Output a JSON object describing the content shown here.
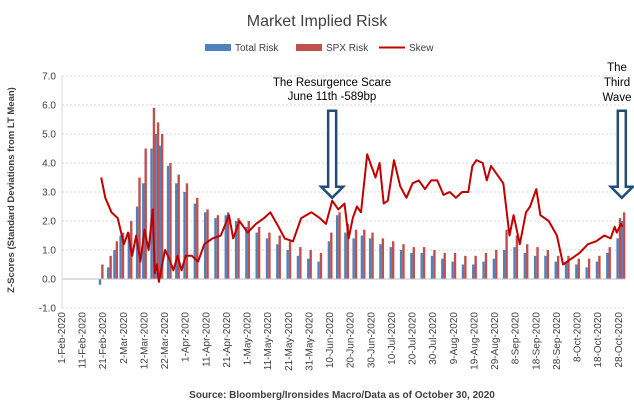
{
  "chart_data": {
    "type": "bar",
    "title": "Market Implied Risk",
    "ylabel": "Z-Scores (Standard Deviations from LT Mean)",
    "xlabel": "",
    "ylim": [
      -1.0,
      7.0
    ],
    "yticks": [
      "-1.0",
      "0.0",
      "1.0",
      "2.0",
      "3.0",
      "4.0",
      "5.0",
      "6.0",
      "7.0"
    ],
    "categories": [
      "1-Feb-2020",
      "11-Feb-2020",
      "21-Feb-2020",
      "2-Mar-2020",
      "12-Mar-2020",
      "22-Mar-2020",
      "1-Apr-2020",
      "11-Apr-2020",
      "21-Apr-2020",
      "1-May-2020",
      "11-May-2020",
      "21-May-2020",
      "31-May-2020",
      "10-Jun-2020",
      "20-Jun-2020",
      "30-Jun-2020",
      "10-Jul-2020",
      "20-Jul-2020",
      "30-Jul-2020",
      "9-Aug-2020",
      "19-Aug-2020",
      "29-Aug-2020",
      "8-Sep-2020",
      "18-Sep-2020",
      "28-Sep-2020",
      "8-Oct-2020",
      "18-Oct-2020",
      "28-Oct-2020"
    ],
    "legend": [
      "Total Risk",
      "SPX Risk",
      "Skew"
    ],
    "colors": {
      "total": "#4f81bd",
      "spx": "#c0504d",
      "skew": "#c00000",
      "arrow": "#1f4e79"
    },
    "source": "Source: Bloomberg/Ironsides Macro/Data as of October 30, 2020",
    "annotations": [
      {
        "lines": [
          "The Resurgence Scare",
          "June 11th -589bp"
        ],
        "date": "11-Jun-2020",
        "arrow_top": 5.8,
        "arrow_bottom": 2.8
      },
      {
        "lines": [
          "The",
          "Third",
          "Wave"
        ],
        "date": "28-Oct-2020",
        "arrow_top": 5.8,
        "arrow_bottom": 2.8
      }
    ],
    "series": [
      {
        "name": "Total Risk",
        "points": [
          [
            "20-Feb-2020",
            -0.2
          ],
          [
            "24-Feb-2020",
            0.4
          ],
          [
            "27-Feb-2020",
            1.0
          ],
          [
            "1-Mar-2020",
            1.5
          ],
          [
            "5-Mar-2020",
            1.6
          ],
          [
            "9-Mar-2020",
            2.5
          ],
          [
            "12-Mar-2020",
            3.3
          ],
          [
            "16-Mar-2020",
            4.5
          ],
          [
            "18-Mar-2020",
            5.0
          ],
          [
            "20-Mar-2020",
            4.6
          ],
          [
            "24-Mar-2020",
            3.9
          ],
          [
            "28-Mar-2020",
            3.3
          ],
          [
            "1-Apr-2020",
            3.0
          ],
          [
            "6-Apr-2020",
            2.6
          ],
          [
            "11-Apr-2020",
            2.3
          ],
          [
            "16-Apr-2020",
            2.1
          ],
          [
            "21-Apr-2020",
            2.2
          ],
          [
            "26-Apr-2020",
            2.0
          ],
          [
            "1-May-2020",
            1.8
          ],
          [
            "6-May-2020",
            1.6
          ],
          [
            "11-May-2020",
            1.4
          ],
          [
            "16-May-2020",
            1.2
          ],
          [
            "21-May-2020",
            1.0
          ],
          [
            "26-May-2020",
            0.8
          ],
          [
            "31-May-2020",
            0.7
          ],
          [
            "5-Jun-2020",
            0.6
          ],
          [
            "10-Jun-2020",
            1.3
          ],
          [
            "14-Jun-2020",
            2.2
          ],
          [
            "18-Jun-2020",
            1.6
          ],
          [
            "22-Jun-2020",
            1.4
          ],
          [
            "26-Jun-2020",
            1.5
          ],
          [
            "30-Jun-2020",
            1.4
          ],
          [
            "5-Jul-2020",
            1.2
          ],
          [
            "10-Jul-2020",
            1.1
          ],
          [
            "15-Jul-2020",
            1.0
          ],
          [
            "20-Jul-2020",
            0.9
          ],
          [
            "25-Jul-2020",
            0.9
          ],
          [
            "30-Jul-2020",
            0.8
          ],
          [
            "4-Aug-2020",
            0.7
          ],
          [
            "9-Aug-2020",
            0.6
          ],
          [
            "14-Aug-2020",
            0.5
          ],
          [
            "19-Aug-2020",
            0.5
          ],
          [
            "24-Aug-2020",
            0.6
          ],
          [
            "29-Aug-2020",
            0.7
          ],
          [
            "3-Sep-2020",
            1.0
          ],
          [
            "8-Sep-2020",
            1.1
          ],
          [
            "13-Sep-2020",
            0.9
          ],
          [
            "18-Sep-2020",
            0.8
          ],
          [
            "23-Sep-2020",
            0.8
          ],
          [
            "28-Sep-2020",
            0.6
          ],
          [
            "3-Oct-2020",
            0.6
          ],
          [
            "8-Oct-2020",
            0.5
          ],
          [
            "13-Oct-2020",
            0.4
          ],
          [
            "18-Oct-2020",
            0.6
          ],
          [
            "23-Oct-2020",
            0.9
          ],
          [
            "28-Oct-2020",
            1.4
          ],
          [
            "30-Oct-2020",
            2.0
          ]
        ]
      },
      {
        "name": "SPX Risk",
        "points": [
          [
            "20-Feb-2020",
            0.5
          ],
          [
            "24-Feb-2020",
            0.8
          ],
          [
            "27-Feb-2020",
            1.3
          ],
          [
            "1-Mar-2020",
            1.6
          ],
          [
            "5-Mar-2020",
            2.0
          ],
          [
            "9-Mar-2020",
            3.5
          ],
          [
            "12-Mar-2020",
            4.5
          ],
          [
            "16-Mar-2020",
            5.9
          ],
          [
            "18-Mar-2020",
            5.4
          ],
          [
            "20-Mar-2020",
            5.0
          ],
          [
            "24-Mar-2020",
            4.0
          ],
          [
            "28-Mar-2020",
            3.6
          ],
          [
            "1-Apr-2020",
            3.3
          ],
          [
            "6-Apr-2020",
            2.8
          ],
          [
            "11-Apr-2020",
            2.4
          ],
          [
            "16-Apr-2020",
            2.2
          ],
          [
            "21-Apr-2020",
            2.3
          ],
          [
            "26-Apr-2020",
            2.1
          ],
          [
            "1-May-2020",
            2.0
          ],
          [
            "6-May-2020",
            1.8
          ],
          [
            "11-May-2020",
            1.6
          ],
          [
            "16-May-2020",
            1.5
          ],
          [
            "21-May-2020",
            1.3
          ],
          [
            "26-May-2020",
            1.1
          ],
          [
            "31-May-2020",
            1.0
          ],
          [
            "5-Jun-2020",
            0.9
          ],
          [
            "10-Jun-2020",
            1.6
          ],
          [
            "14-Jun-2020",
            2.3
          ],
          [
            "18-Jun-2020",
            1.9
          ],
          [
            "22-Jun-2020",
            1.7
          ],
          [
            "26-Jun-2020",
            1.7
          ],
          [
            "30-Jun-2020",
            1.6
          ],
          [
            "5-Jul-2020",
            1.4
          ],
          [
            "10-Jul-2020",
            1.3
          ],
          [
            "15-Jul-2020",
            1.2
          ],
          [
            "20-Jul-2020",
            1.1
          ],
          [
            "25-Jul-2020",
            1.1
          ],
          [
            "30-Jul-2020",
            1.0
          ],
          [
            "4-Aug-2020",
            0.9
          ],
          [
            "9-Aug-2020",
            0.9
          ],
          [
            "14-Aug-2020",
            0.8
          ],
          [
            "19-Aug-2020",
            0.8
          ],
          [
            "24-Aug-2020",
            0.9
          ],
          [
            "29-Aug-2020",
            1.0
          ],
          [
            "3-Sep-2020",
            1.7
          ],
          [
            "8-Sep-2020",
            1.5
          ],
          [
            "13-Sep-2020",
            1.2
          ],
          [
            "18-Sep-2020",
            1.1
          ],
          [
            "23-Sep-2020",
            1.0
          ],
          [
            "28-Sep-2020",
            0.8
          ],
          [
            "3-Oct-2020",
            0.8
          ],
          [
            "8-Oct-2020",
            0.7
          ],
          [
            "13-Oct-2020",
            0.7
          ],
          [
            "18-Oct-2020",
            0.8
          ],
          [
            "23-Oct-2020",
            1.1
          ],
          [
            "28-Oct-2020",
            2.1
          ],
          [
            "30-Oct-2020",
            2.3
          ]
        ]
      },
      {
        "name": "Skew",
        "points": [
          [
            "20-Feb-2020",
            3.5
          ],
          [
            "22-Feb-2020",
            2.8
          ],
          [
            "25-Feb-2020",
            2.3
          ],
          [
            "28-Feb-2020",
            2.1
          ],
          [
            "2-Mar-2020",
            1.2
          ],
          [
            "4-Mar-2020",
            1.6
          ],
          [
            "6-Mar-2020",
            0.8
          ],
          [
            "8-Mar-2020",
            1.5
          ],
          [
            "10-Mar-2020",
            0.6
          ],
          [
            "12-Mar-2020",
            1.7
          ],
          [
            "14-Mar-2020",
            1.0
          ],
          [
            "16-Mar-2020",
            2.4
          ],
          [
            "17-Mar-2020",
            0.2
          ],
          [
            "18-Mar-2020",
            0.5
          ],
          [
            "19-Mar-2020",
            -0.1
          ],
          [
            "20-Mar-2020",
            0.3
          ],
          [
            "22-Mar-2020",
            1.0
          ],
          [
            "24-Mar-2020",
            0.7
          ],
          [
            "26-Mar-2020",
            0.3
          ],
          [
            "28-Mar-2020",
            0.8
          ],
          [
            "30-Mar-2020",
            0.3
          ],
          [
            "1-Apr-2020",
            0.8
          ],
          [
            "4-Apr-2020",
            0.8
          ],
          [
            "7-Apr-2020",
            0.6
          ],
          [
            "10-Apr-2020",
            1.2
          ],
          [
            "14-Apr-2020",
            1.4
          ],
          [
            "18-Apr-2020",
            1.5
          ],
          [
            "22-Apr-2020",
            2.2
          ],
          [
            "24-Apr-2020",
            1.4
          ],
          [
            "27-Apr-2020",
            2.0
          ],
          [
            "1-May-2020",
            1.6
          ],
          [
            "5-May-2020",
            1.9
          ],
          [
            "9-May-2020",
            2.1
          ],
          [
            "12-May-2020",
            2.3
          ],
          [
            "16-May-2020",
            1.8
          ],
          [
            "19-May-2020",
            1.4
          ],
          [
            "23-May-2020",
            1.3
          ],
          [
            "27-May-2020",
            2.1
          ],
          [
            "1-Jun-2020",
            2.3
          ],
          [
            "5-Jun-2020",
            2.1
          ],
          [
            "8-Jun-2020",
            1.9
          ],
          [
            "11-Jun-2020",
            2.7
          ],
          [
            "14-Jun-2020",
            2.4
          ],
          [
            "17-Jun-2020",
            2.6
          ],
          [
            "19-Jun-2020",
            1.4
          ],
          [
            "21-Jun-2020",
            2.1
          ],
          [
            "23-Jun-2020",
            2.5
          ],
          [
            "25-Jun-2020",
            2.3
          ],
          [
            "28-Jun-2020",
            4.3
          ],
          [
            "30-Jun-2020",
            3.9
          ],
          [
            "2-Jul-2020",
            3.5
          ],
          [
            "4-Jul-2020",
            4.0
          ],
          [
            "6-Jul-2020",
            2.6
          ],
          [
            "8-Jul-2020",
            2.7
          ],
          [
            "11-Jul-2020",
            4.1
          ],
          [
            "14-Jul-2020",
            3.2
          ],
          [
            "17-Jul-2020",
            2.8
          ],
          [
            "20-Jul-2020",
            3.3
          ],
          [
            "23-Jul-2020",
            3.4
          ],
          [
            "26-Jul-2020",
            3.1
          ],
          [
            "29-Jul-2020",
            3.4
          ],
          [
            "1-Aug-2020",
            3.4
          ],
          [
            "4-Aug-2020",
            2.9
          ],
          [
            "7-Aug-2020",
            3.0
          ],
          [
            "10-Aug-2020",
            2.8
          ],
          [
            "13-Aug-2020",
            3.0
          ],
          [
            "16-Aug-2020",
            3.0
          ],
          [
            "18-Aug-2020",
            3.9
          ],
          [
            "20-Aug-2020",
            4.1
          ],
          [
            "23-Aug-2020",
            4.0
          ],
          [
            "25-Aug-2020",
            3.4
          ],
          [
            "27-Aug-2020",
            3.9
          ],
          [
            "30-Aug-2020",
            3.6
          ],
          [
            "2-Sep-2020",
            3.3
          ],
          [
            "5-Sep-2020",
            1.5
          ],
          [
            "7-Sep-2020",
            2.2
          ],
          [
            "10-Sep-2020",
            1.2
          ],
          [
            "13-Sep-2020",
            2.3
          ],
          [
            "15-Sep-2020",
            2.5
          ],
          [
            "18-Sep-2020",
            3.1
          ],
          [
            "20-Sep-2020",
            2.2
          ],
          [
            "24-Sep-2020",
            2.0
          ],
          [
            "28-Sep-2020",
            1.5
          ],
          [
            "1-Oct-2020",
            0.5
          ],
          [
            "5-Oct-2020",
            0.7
          ],
          [
            "9-Oct-2020",
            0.9
          ],
          [
            "13-Oct-2020",
            1.2
          ],
          [
            "17-Oct-2020",
            1.3
          ],
          [
            "21-Oct-2020",
            1.5
          ],
          [
            "24-Oct-2020",
            1.4
          ],
          [
            "26-Oct-2020",
            1.8
          ],
          [
            "27-Oct-2020",
            1.6
          ],
          [
            "29-Oct-2020",
            1.9
          ],
          [
            "30-Oct-2020",
            1.8
          ]
        ]
      }
    ]
  }
}
